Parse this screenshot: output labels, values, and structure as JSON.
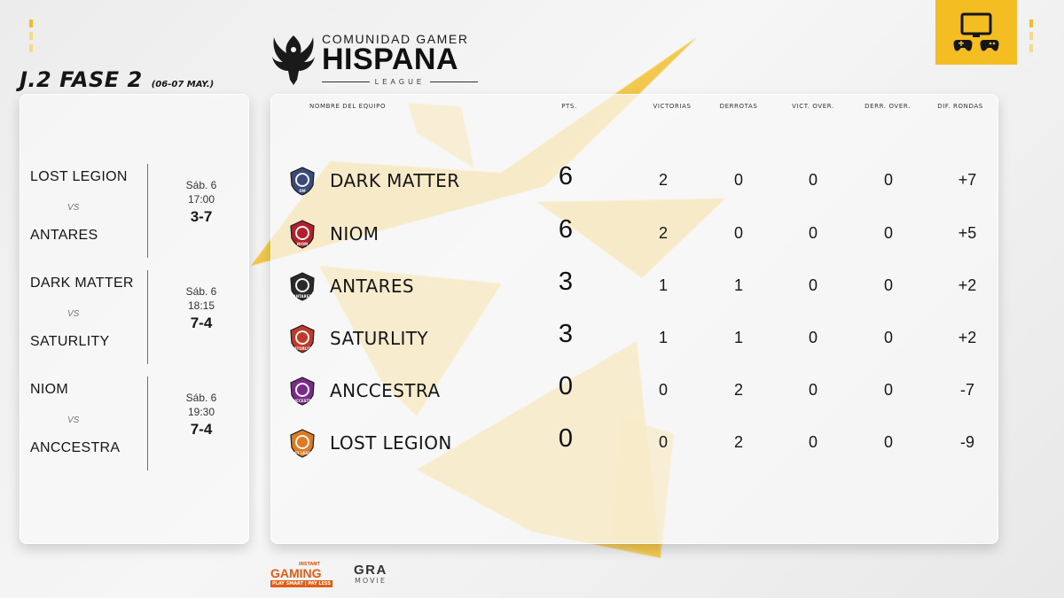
{
  "header": {
    "title": "J.2 FASE 2",
    "dates": "(06-07 MAY.)"
  },
  "logo": {
    "top_text": "COMUNIDAD GAMER",
    "main_text": "HISPANA",
    "sub_text": "LEAGUE"
  },
  "matches": [
    {
      "team_a": "LOST LEGION",
      "vs": "VS",
      "team_b": "ANTARES",
      "day": "Sáb. 6",
      "time": "17:00",
      "score": "3-7"
    },
    {
      "team_a": "DARK MATTER",
      "vs": "VS",
      "team_b": "SATURLITY",
      "day": "Sáb. 6",
      "time": "18:15",
      "score": "7-4"
    },
    {
      "team_a": "NIOM",
      "vs": "VS",
      "team_b": "ANCCESTRA",
      "day": "Sáb. 6",
      "time": "19:30",
      "score": "7-4"
    }
  ],
  "standings": {
    "columns": {
      "team": "NOMBRE DEL EQUIPO",
      "pts": "PTS.",
      "wins": "VICTORIAS",
      "losses": "DERROTAS",
      "ot_wins": "VICT. OVER.",
      "ot_losses": "DERR. OVER.",
      "round_diff": "DIF. RONDAS"
    },
    "rows": [
      {
        "name": "DARK MATTER",
        "pts": "6",
        "wins": "2",
        "losses": "0",
        "ot_wins": "0",
        "ot_losses": "0",
        "diff": "+7",
        "badge": "dark-matter-logo",
        "badge_text": "DM"
      },
      {
        "name": "NIOM",
        "pts": "6",
        "wins": "2",
        "losses": "0",
        "ot_wins": "0",
        "ot_losses": "0",
        "diff": "+5",
        "badge": "niom-logo",
        "badge_text": "NIOM"
      },
      {
        "name": "ANTARES",
        "pts": "3",
        "wins": "1",
        "losses": "1",
        "ot_wins": "0",
        "ot_losses": "0",
        "diff": "+2",
        "badge": "antares-logo",
        "badge_text": "ANTARES"
      },
      {
        "name": "SATURLITY",
        "pts": "3",
        "wins": "1",
        "losses": "1",
        "ot_wins": "0",
        "ot_losses": "0",
        "diff": "+2",
        "badge": "saturlity-logo",
        "badge_text": "SATURLITY"
      },
      {
        "name": "ANCCESTRA",
        "pts": "0",
        "wins": "0",
        "losses": "2",
        "ot_wins": "0",
        "ot_losses": "0",
        "diff": "-7",
        "badge": "anccestra-logo",
        "badge_text": "ANCCESTRA"
      },
      {
        "name": "LOST LEGION",
        "pts": "0",
        "wins": "0",
        "losses": "2",
        "ot_wins": "0",
        "ot_losses": "0",
        "diff": "-9",
        "badge": "lost-legion-logo",
        "badge_text": "LOST LEGION"
      }
    ]
  },
  "sponsors": {
    "instant_gaming": {
      "top": "INSTANT",
      "main": "GAMING",
      "tagline": "PLAY SMART | PAY LESS"
    },
    "gra": {
      "main": "GRA",
      "sub": "MOVIE"
    }
  },
  "colors": {
    "accent_yellow": "#f4bd22",
    "instant_gaming_orange": "#e35a12"
  },
  "icons": {
    "console": "monitor-with-controllers-icon",
    "corner_marks": "yellow-corner-marks"
  }
}
